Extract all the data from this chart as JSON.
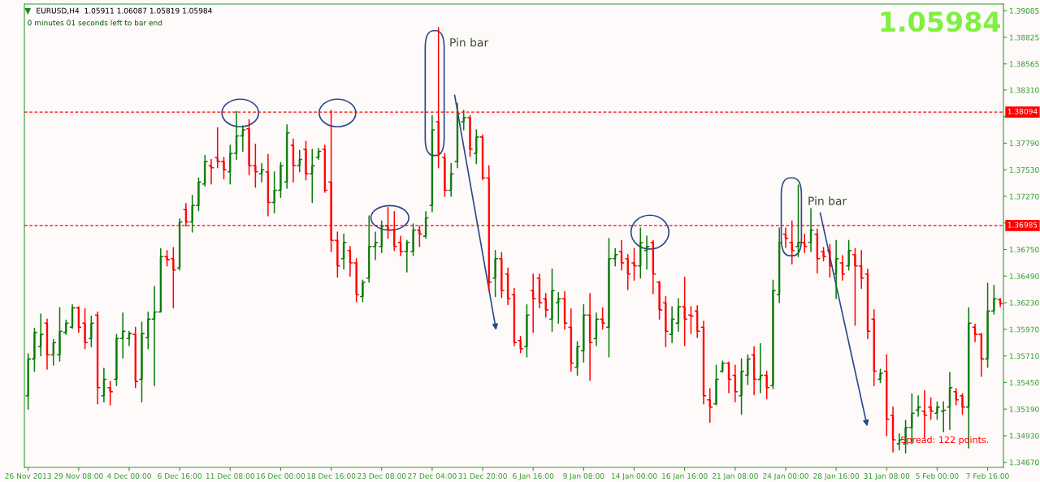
{
  "chart_data": {
    "type": "candlestick",
    "title": "EURUSD,H4  1.05911 1.06087 1.05819 1.05984",
    "subtitle": "0 minutes 01 seconds left to bar end",
    "annotations": [
      "1.05984",
      "Pin bar",
      "Pin bar",
      "Spread: 122 points."
    ],
    "categories": [
      "26 Nov 2013",
      null,
      null,
      null,
      null,
      null,
      null,
      null,
      "29 Nov 08:00",
      null,
      null,
      null,
      null,
      null,
      null,
      null,
      "4 Dec 00:00",
      null,
      null,
      null,
      null,
      null,
      null,
      null,
      "6 Dec 16:00",
      null,
      null,
      null,
      null,
      null,
      null,
      null,
      "11 Dec 08:00",
      null,
      null,
      null,
      null,
      null,
      null,
      null,
      "16 Dec 00:00",
      null,
      null,
      null,
      null,
      null,
      null,
      null,
      "18 Dec 16:00",
      null,
      null,
      null,
      null,
      null,
      null,
      null,
      "23 Dec 08:00",
      null,
      null,
      null,
      null,
      null,
      null,
      null,
      "27 Dec 04:00",
      null,
      null,
      null,
      null,
      null,
      null,
      null,
      "31 Dec 20:00",
      null,
      null,
      null,
      null,
      null,
      null,
      null,
      "6 Jan 16:00",
      null,
      null,
      null,
      null,
      null,
      null,
      null,
      "9 Jan 08:00",
      null,
      null,
      null,
      null,
      null,
      null,
      null,
      "14 Jan 00:00",
      null,
      null,
      null,
      null,
      null,
      null,
      null,
      "16 Jan 16:00",
      null,
      null,
      null,
      null,
      null,
      null,
      null,
      "21 Jan 08:00",
      null,
      null,
      null,
      null,
      null,
      null,
      null,
      "24 Jan 00:00",
      null,
      null,
      null,
      null,
      null,
      null,
      null,
      "28 Jan 16:00",
      null,
      null,
      null,
      null,
      null,
      null,
      null,
      "31 Jan 08:00",
      null,
      null,
      null,
      null,
      null,
      null,
      null,
      "5 Feb 00:00",
      null,
      null,
      null,
      null,
      null,
      null,
      null,
      "7 Feb 16:00",
      null,
      null
    ],
    "ohlc": [
      [
        1.3532,
        1.3573,
        1.3519,
        1.3568
      ],
      [
        1.3568,
        1.3598,
        1.3556,
        1.3594
      ],
      [
        1.358,
        1.3612,
        1.3571,
        1.3592
      ],
      [
        1.3603,
        1.3607,
        1.3558,
        1.3572
      ],
      [
        1.3572,
        1.3587,
        1.3562,
        1.3584
      ],
      [
        1.3572,
        1.3618,
        1.3566,
        1.3595
      ],
      [
        1.3594,
        1.3606,
        1.3592,
        1.3603
      ],
      [
        1.3599,
        1.3621,
        1.3598,
        1.3618
      ],
      [
        1.3618,
        1.3619,
        1.3594,
        1.3599
      ],
      [
        1.3603,
        1.3617,
        1.3578,
        1.3584
      ],
      [
        1.3588,
        1.361,
        1.358,
        1.3603
      ],
      [
        1.3611,
        1.3614,
        1.3524,
        1.354
      ],
      [
        1.3532,
        1.3559,
        1.3526,
        1.3548
      ],
      [
        1.354,
        1.3546,
        1.3523,
        1.3536
      ],
      [
        1.3548,
        1.3592,
        1.3542,
        1.3588
      ],
      [
        1.3588,
        1.3613,
        1.3569,
        1.3595
      ],
      [
        1.3588,
        1.3595,
        1.3581,
        1.3593
      ],
      [
        1.3592,
        1.3599,
        1.354,
        1.3546
      ],
      [
        1.3548,
        1.3604,
        1.3526,
        1.3593
      ],
      [
        1.3589,
        1.3614,
        1.3578,
        1.3607
      ],
      [
        1.3607,
        1.3639,
        1.3542,
        1.3614
      ],
      [
        1.3614,
        1.3676,
        1.3614,
        1.3668
      ],
      [
        1.3668,
        1.3674,
        1.3659,
        1.3665
      ],
      [
        1.3666,
        1.3677,
        1.3618,
        1.3655
      ],
      [
        1.3657,
        1.3705,
        1.3655,
        1.3702
      ],
      [
        1.3714,
        1.372,
        1.3698,
        1.3702
      ],
      [
        1.3702,
        1.3728,
        1.3692,
        1.3718
      ],
      [
        1.3718,
        1.3745,
        1.3713,
        1.3741
      ],
      [
        1.3739,
        1.3767,
        1.3737,
        1.3761
      ],
      [
        1.3757,
        1.3763,
        1.3739,
        1.3755
      ],
      [
        1.3765,
        1.3794,
        1.3755,
        1.3761
      ],
      [
        1.3761,
        1.3765,
        1.3744,
        1.3753
      ],
      [
        1.3751,
        1.3777,
        1.3739,
        1.3769
      ],
      [
        1.3769,
        1.381,
        1.3763,
        1.3786
      ],
      [
        1.3786,
        1.3796,
        1.3771,
        1.3792
      ],
      [
        1.3793,
        1.3802,
        1.3748,
        1.3757
      ],
      [
        1.3757,
        1.3778,
        1.3736,
        1.3751
      ],
      [
        1.3749,
        1.3759,
        1.3741,
        1.3753
      ],
      [
        1.3751,
        1.3768,
        1.3708,
        1.3721
      ],
      [
        1.3721,
        1.3751,
        1.3711,
        1.3733
      ],
      [
        1.3733,
        1.376,
        1.3726,
        1.3757
      ],
      [
        1.3741,
        1.3797,
        1.3735,
        1.3789
      ],
      [
        1.3777,
        1.3783,
        1.3741,
        1.3757
      ],
      [
        1.3757,
        1.3772,
        1.3751,
        1.3763
      ],
      [
        1.3773,
        1.3781,
        1.3743,
        1.3749
      ],
      [
        1.3749,
        1.3773,
        1.3721,
        1.3757
      ],
      [
        1.3765,
        1.3774,
        1.3763,
        1.3771
      ],
      [
        1.3773,
        1.3777,
        1.3731,
        1.3733
      ],
      [
        1.3741,
        1.3811,
        1.3673,
        1.3684
      ],
      [
        1.3684,
        1.3692,
        1.3648,
        1.3659
      ],
      [
        1.3666,
        1.369,
        1.3656,
        1.3682
      ],
      [
        1.3674,
        1.3678,
        1.3649,
        1.3662
      ],
      [
        1.3662,
        1.3666,
        1.3624,
        1.3631
      ],
      [
        1.3629,
        1.3645,
        1.3624,
        1.3643
      ],
      [
        1.3647,
        1.3708,
        1.3643,
        1.3678
      ],
      [
        1.3678,
        1.3692,
        1.3665,
        1.3682
      ],
      [
        1.3678,
        1.3703,
        1.3672,
        1.3698
      ],
      [
        1.3698,
        1.3716,
        1.3686,
        1.3694
      ],
      [
        1.3694,
        1.3712,
        1.3674,
        1.3678
      ],
      [
        1.3682,
        1.3688,
        1.3669,
        1.3673
      ],
      [
        1.3673,
        1.3684,
        1.3653,
        1.3682
      ],
      [
        1.3673,
        1.37,
        1.3669,
        1.3694
      ],
      [
        1.3694,
        1.3698,
        1.3678,
        1.369
      ],
      [
        1.3688,
        1.3712,
        1.3686,
        1.3706
      ],
      [
        1.3718,
        1.3806,
        1.3712,
        1.3792
      ],
      [
        1.38,
        1.3892,
        1.3755,
        1.3769
      ],
      [
        1.3765,
        1.3769,
        1.3727,
        1.3733
      ],
      [
        1.3733,
        1.3759,
        1.3727,
        1.3749
      ],
      [
        1.3761,
        1.3818,
        1.3755,
        1.3808
      ],
      [
        1.38,
        1.3811,
        1.3792,
        1.3804
      ],
      [
        1.3804,
        1.3806,
        1.3766,
        1.3773
      ],
      [
        1.3769,
        1.3792,
        1.3759,
        1.3785
      ],
      [
        1.3785,
        1.3787,
        1.3743,
        1.3745
      ],
      [
        1.3745,
        1.3757,
        1.3635,
        1.3643
      ],
      [
        1.3647,
        1.3674,
        1.3629,
        1.3666
      ],
      [
        1.3666,
        1.3672,
        1.3628,
        1.3635
      ],
      [
        1.3651,
        1.3657,
        1.3621,
        1.3627
      ],
      [
        1.3631,
        1.3637,
        1.3581,
        1.3584
      ],
      [
        1.3586,
        1.359,
        1.3574,
        1.3578
      ],
      [
        1.358,
        1.3621,
        1.357,
        1.3611
      ],
      [
        1.3635,
        1.3651,
        1.3594,
        1.3627
      ],
      [
        1.3647,
        1.3651,
        1.3618,
        1.3623
      ],
      [
        1.3627,
        1.3632,
        1.3609,
        1.3616
      ],
      [
        1.3607,
        1.3656,
        1.3595,
        1.3635
      ],
      [
        1.3623,
        1.3633,
        1.3603,
        1.3627
      ],
      [
        1.3627,
        1.3634,
        1.3597,
        1.3603
      ],
      [
        1.3599,
        1.3617,
        1.3556,
        1.3564
      ],
      [
        1.356,
        1.3585,
        1.3552,
        1.358
      ],
      [
        1.3576,
        1.3621,
        1.3565,
        1.3611
      ],
      [
        1.3611,
        1.3632,
        1.3547,
        1.3584
      ],
      [
        1.3588,
        1.3613,
        1.3581,
        1.3607
      ],
      [
        1.3607,
        1.3618,
        1.3597,
        1.3603
      ],
      [
        1.3599,
        1.3686,
        1.357,
        1.3666
      ],
      [
        1.3666,
        1.3676,
        1.3659,
        1.367
      ],
      [
        1.3673,
        1.3684,
        1.3655,
        1.3662
      ],
      [
        1.3666,
        1.367,
        1.3636,
        1.3651
      ],
      [
        1.3662,
        1.3676,
        1.3645,
        1.3659
      ],
      [
        1.3659,
        1.3696,
        1.3647,
        1.3682
      ],
      [
        1.3674,
        1.3688,
        1.3656,
        1.3678
      ],
      [
        1.3682,
        1.3684,
        1.3632,
        1.3651
      ],
      [
        1.3643,
        1.3644,
        1.3607,
        1.3616
      ],
      [
        1.3623,
        1.3629,
        1.358,
        1.3595
      ],
      [
        1.3592,
        1.3619,
        1.3584,
        1.3607
      ],
      [
        1.3603,
        1.3627,
        1.3595,
        1.3619
      ],
      [
        1.3619,
        1.3648,
        1.3581,
        1.3607
      ],
      [
        1.3611,
        1.3619,
        1.3593,
        1.361
      ],
      [
        1.3615,
        1.362,
        1.3589,
        1.3595
      ],
      [
        1.3599,
        1.3605,
        1.3524,
        1.3532
      ],
      [
        1.3528,
        1.3539,
        1.3506,
        1.3521
      ],
      [
        1.3524,
        1.3562,
        1.3523,
        1.3548
      ],
      [
        1.3556,
        1.3566,
        1.3555,
        1.3564
      ],
      [
        1.3564,
        1.3565,
        1.3535,
        1.3548
      ],
      [
        1.3552,
        1.3562,
        1.3526,
        1.3536
      ],
      [
        1.3532,
        1.3568,
        1.3514,
        1.3556
      ],
      [
        1.3552,
        1.3572,
        1.3543,
        1.3568
      ],
      [
        1.3572,
        1.358,
        1.3533,
        1.3548
      ],
      [
        1.3548,
        1.3583,
        1.3535,
        1.3552
      ],
      [
        1.3552,
        1.3556,
        1.3529,
        1.354
      ],
      [
        1.3542,
        1.3645,
        1.3539,
        1.3635
      ],
      [
        1.3631,
        1.3696,
        1.3623,
        1.3682
      ],
      [
        1.369,
        1.3696,
        1.3677,
        1.3686
      ],
      [
        1.3682,
        1.3703,
        1.3661,
        1.3674
      ],
      [
        1.3678,
        1.3738,
        1.3668,
        1.3682
      ],
      [
        1.3682,
        1.369,
        1.3672,
        1.3678
      ],
      [
        1.3682,
        1.3715,
        1.3673,
        1.3694
      ],
      [
        1.369,
        1.3695,
        1.3652,
        1.3666
      ],
      [
        1.3673,
        1.3677,
        1.3664,
        1.3668
      ],
      [
        1.3674,
        1.368,
        1.3648,
        1.3659
      ],
      [
        1.3651,
        1.3684,
        1.3627,
        1.3666
      ],
      [
        1.3662,
        1.3669,
        1.3645,
        1.3651
      ],
      [
        1.3659,
        1.3684,
        1.3655,
        1.3674
      ],
      [
        1.367,
        1.3676,
        1.3601,
        1.3659
      ],
      [
        1.3659,
        1.3674,
        1.3637,
        1.3647
      ],
      [
        1.3651,
        1.3656,
        1.3588,
        1.3595
      ],
      [
        1.3607,
        1.3616,
        1.3542,
        1.3556
      ],
      [
        1.3548,
        1.3558,
        1.3545,
        1.3554
      ],
      [
        1.3556,
        1.3572,
        1.3493,
        1.3509
      ],
      [
        1.3513,
        1.3521,
        1.3477,
        1.3489
      ],
      [
        1.3485,
        1.3495,
        1.3479,
        1.3489
      ],
      [
        1.3485,
        1.3508,
        1.3476,
        1.3501
      ],
      [
        1.3501,
        1.3534,
        1.3485,
        1.3515
      ],
      [
        1.3518,
        1.3532,
        1.3512,
        1.3521
      ],
      [
        1.3517,
        1.3537,
        1.3491,
        1.3513
      ],
      [
        1.3521,
        1.353,
        1.3509,
        1.3517
      ],
      [
        1.3515,
        1.3526,
        1.3509,
        1.3521
      ],
      [
        1.3517,
        1.3526,
        1.3497,
        1.3518
      ],
      [
        1.3521,
        1.3555,
        1.3499,
        1.354
      ],
      [
        1.3536,
        1.3539,
        1.3523,
        1.3528
      ],
      [
        1.3532,
        1.3534,
        1.3514,
        1.3521
      ],
      [
        1.3521,
        1.3618,
        1.3481,
        1.3603
      ],
      [
        1.3599,
        1.3602,
        1.3585,
        1.3592
      ],
      [
        1.3592,
        1.3593,
        1.3551,
        1.3568
      ],
      [
        1.3568,
        1.3642,
        1.356,
        1.3615
      ],
      [
        1.3615,
        1.364,
        1.3612,
        1.3627
      ],
      [
        1.3626,
        1.3627,
        1.3619,
        1.3622
      ]
    ],
    "colors": [
      "#0a7a0a",
      "#0a7a0a",
      "#0a7a0a",
      "#ff0000",
      "#0a7a0a",
      "#0a7a0a",
      "#0a7a0a",
      "#0a7a0a",
      "#ff0000",
      "#ff0000",
      "#0a7a0a",
      "#ff0000",
      "#0a7a0a",
      "#ff0000",
      "#0a7a0a",
      "#0a7a0a",
      "#0a7a0a",
      "#ff0000",
      "#0a7a0a",
      "#0a7a0a",
      "#0a7a0a",
      "#0a7a0a",
      "#ff0000",
      "#ff0000",
      "#0a7a0a",
      "#ff0000",
      "#0a7a0a",
      "#0a7a0a",
      "#0a7a0a",
      "#ff0000",
      "#ff0000",
      "#ff0000",
      "#0a7a0a",
      "#0a7a0a",
      "#0a7a0a",
      "#ff0000",
      "#ff0000",
      "#0a7a0a",
      "#ff0000",
      "#0a7a0a",
      "#0a7a0a",
      "#0a7a0a",
      "#ff0000",
      "#0a7a0a",
      "#ff0000",
      "#0a7a0a",
      "#0a7a0a",
      "#ff0000",
      "#ff0000",
      "#ff0000",
      "#0a7a0a",
      "#ff0000",
      "#ff0000",
      "#0a7a0a",
      "#0a7a0a",
      "#0a7a0a",
      "#0a7a0a",
      "#ff0000",
      "#ff0000",
      "#ff0000",
      "#0a7a0a",
      "#0a7a0a",
      "#ff0000",
      "#0a7a0a",
      "#0a7a0a",
      "#ff0000",
      "#ff0000",
      "#0a7a0a",
      "#0a7a0a",
      "#0a7a0a",
      "#ff0000",
      "#0a7a0a",
      "#ff0000",
      "#ff0000",
      "#0a7a0a",
      "#ff0000",
      "#ff0000",
      "#ff0000",
      "#ff0000",
      "#0a7a0a",
      "#ff0000",
      "#ff0000",
      "#ff0000",
      "#0a7a0a",
      "#0a7a0a",
      "#ff0000",
      "#ff0000",
      "#0a7a0a",
      "#0a7a0a",
      "#ff0000",
      "#0a7a0a",
      "#ff0000",
      "#0a7a0a",
      "#0a7a0a",
      "#ff0000",
      "#ff0000",
      "#ff0000",
      "#0a7a0a",
      "#0a7a0a",
      "#ff0000",
      "#ff0000",
      "#ff0000",
      "#0a7a0a",
      "#0a7a0a",
      "#ff0000",
      "#ff0000",
      "#ff0000",
      "#ff0000",
      "#ff0000",
      "#0a7a0a",
      "#0a7a0a",
      "#ff0000",
      "#ff0000",
      "#0a7a0a",
      "#0a7a0a",
      "#ff0000",
      "#0a7a0a",
      "#ff0000",
      "#0a7a0a",
      "#0a7a0a",
      "#ff0000",
      "#ff0000",
      "#0a7a0a",
      "#ff0000",
      "#0a7a0a",
      "#ff0000",
      "#ff0000",
      "#ff0000",
      "#0a7a0a",
      "#ff0000",
      "#0a7a0a",
      "#ff0000",
      "#ff0000",
      "#ff0000",
      "#ff0000",
      "#0a7a0a",
      "#ff0000",
      "#ff0000",
      "#0a7a0a",
      "#0a7a0a",
      "#0a7a0a",
      "#0a7a0a",
      "#ff0000",
      "#ff0000",
      "#0a7a0a",
      "#0a7a0a",
      "#0a7a0a",
      "#ff0000",
      "#ff0000",
      "#0a7a0a",
      "#ff0000",
      "#ff0000",
      "#0a7a0a",
      "#0a7a0a",
      "#ff0000"
    ],
    "ylim": [
      1.3462,
      1.3915
    ],
    "yticks": [
      {
        "value": 1.3467,
        "label": "1.34670"
      },
      {
        "value": 1.3493,
        "label": "1.34930"
      },
      {
        "value": 1.3519,
        "label": "1.35190"
      },
      {
        "value": 1.3545,
        "label": "1.35450"
      },
      {
        "value": 1.3571,
        "label": "1.35710"
      },
      {
        "value": 1.3597,
        "label": "1.35970"
      },
      {
        "value": 1.3623,
        "label": "1.36230"
      },
      {
        "value": 1.3649,
        "label": "1.36490"
      },
      {
        "value": 1.3675,
        "label": "1.36750"
      },
      {
        "value": 1.3701,
        "label": null
      },
      {
        "value": 1.3727,
        "label": "1.37270"
      },
      {
        "value": 1.3753,
        "label": "1.37530"
      },
      {
        "value": 1.3779,
        "label": "1.37790"
      },
      {
        "value": 1.3805,
        "label": null
      },
      {
        "value": 1.3831,
        "label": "1.38310"
      },
      {
        "value": 1.38565,
        "label": "1.38565"
      },
      {
        "value": 1.38825,
        "label": "1.38825"
      },
      {
        "value": 1.39085,
        "label": "1.39085"
      }
    ],
    "ref_lines": [
      {
        "axis": "y",
        "value": 1.38094,
        "label": "1.38094",
        "color": "#ff0000",
        "line_style": "dashed"
      },
      {
        "axis": "y",
        "value": 1.36985,
        "label": "1.36985",
        "color": "#ff0000",
        "line_style": "dashed"
      }
    ],
    "grid": false,
    "legend": false
  }
}
